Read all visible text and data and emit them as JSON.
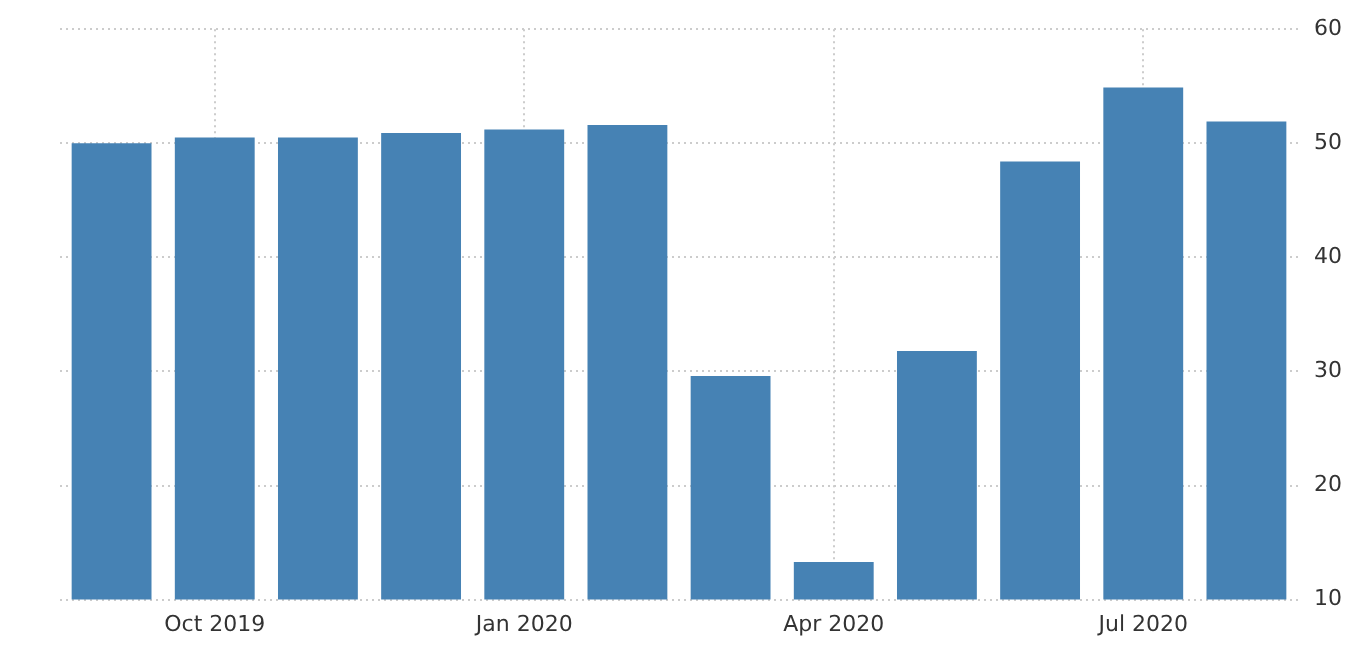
{
  "chart_data": {
    "type": "bar",
    "categories": [
      null,
      "Oct 2019",
      null,
      null,
      "Jan 2020",
      null,
      null,
      "Apr 2020",
      null,
      null,
      "Jul 2020",
      null
    ],
    "values": [
      50.0,
      50.5,
      50.5,
      50.9,
      51.2,
      51.6,
      29.6,
      13.3,
      31.8,
      48.4,
      54.9,
      51.9
    ],
    "color": "#4682b4",
    "ylim": [
      10,
      60
    ],
    "yticks": [
      10,
      20,
      30,
      40,
      50,
      60
    ],
    "grid": true
  }
}
